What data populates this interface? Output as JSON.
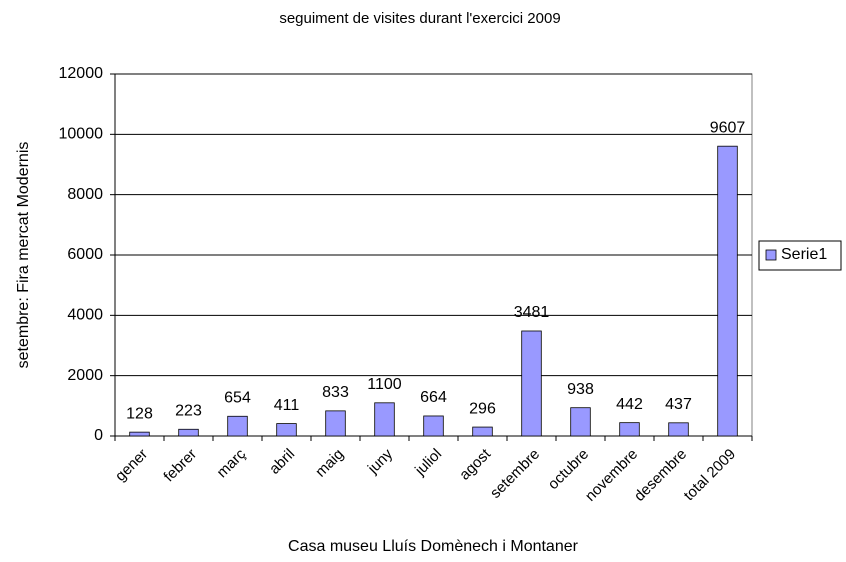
{
  "chart_data": {
    "type": "bar",
    "title": "seguiment de visites durant l'exercici 2009",
    "x_label": "Casa museu Lluís Domènech i Montaner",
    "y_label": "setembre: Fira mercat Modernis",
    "categories": [
      "gener",
      "febrer",
      "març",
      "abril",
      "maig",
      "juny",
      "juliol",
      "agost",
      "setembre",
      "octubre",
      "novembre",
      "desembre",
      "total 2009"
    ],
    "series": [
      {
        "name": "Serie1",
        "color": "#9999ff",
        "values": [
          128,
          223,
          654,
          411,
          833,
          1100,
          664,
          296,
          3481,
          938,
          442,
          437,
          9607
        ]
      }
    ],
    "ylim": [
      0,
      12000
    ],
    "yticks": [
      0,
      2000,
      4000,
      6000,
      8000,
      10000,
      12000
    ],
    "grid": true,
    "legend": "right"
  }
}
